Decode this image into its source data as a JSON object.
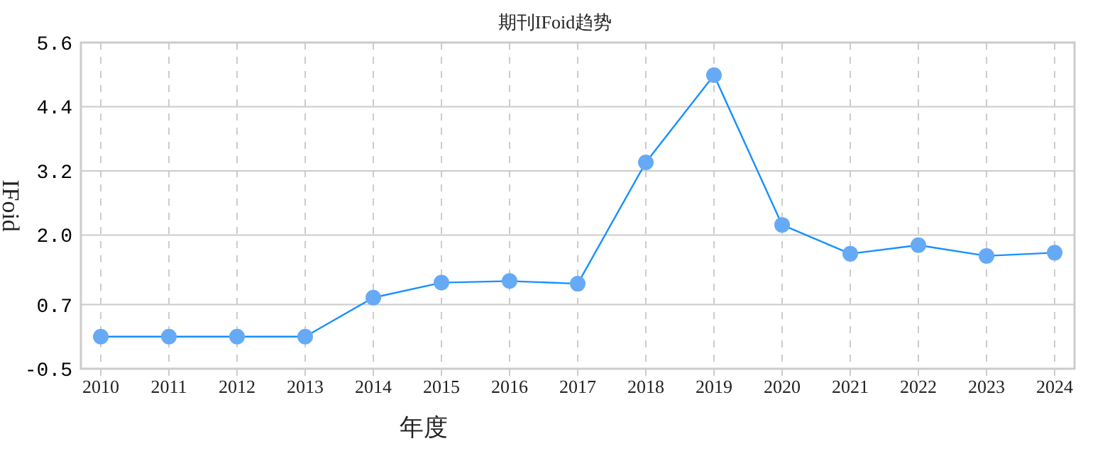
{
  "chart_data": {
    "type": "line",
    "title": "期刊IFoid趋势",
    "xlabel": "年度",
    "ylabel": "IFoid",
    "categories": [
      "2010",
      "2011",
      "2012",
      "2013",
      "2014",
      "2015",
      "2016",
      "2017",
      "2018",
      "2019",
      "2020",
      "2021",
      "2022",
      "2023",
      "2024"
    ],
    "series": [
      {
        "color": "#1890ff",
        "values": [
          0.1,
          0.1,
          0.1,
          0.1,
          0.83,
          1.11,
          1.14,
          1.09,
          3.36,
          4.99,
          2.19,
          1.65,
          1.81,
          1.61,
          1.67
        ]
      }
    ],
    "ylim": [
      -0.5,
      5.6
    ],
    "yticks": [
      -0.5,
      0.7,
      {
        "value": 2.0,
        "label": "2.0"
      },
      3.2,
      4.4,
      5.6
    ],
    "grid": true,
    "marker": "circle",
    "line_style": "solid"
  }
}
